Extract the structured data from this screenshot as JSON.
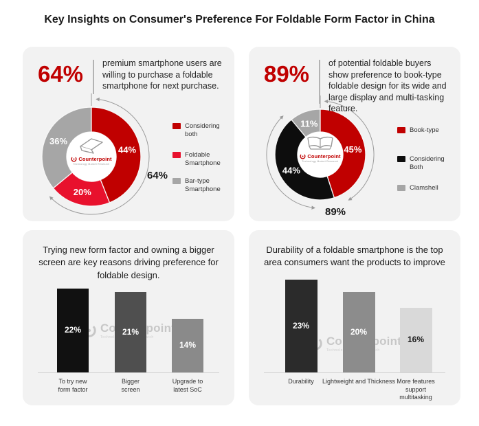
{
  "page_title": "Key Insights on Consumer's Preference For Foldable Form Factor in China",
  "brand": {
    "logo_text": "Counterpoint",
    "logo_tagline": "Technology Market Research",
    "logo_color": "#c00000"
  },
  "panels": {
    "top_left": {
      "stat": "64%",
      "description": "premium smartphone users are willing to purchase a foldable smartphone for next purchase."
    },
    "top_right": {
      "stat": "89%",
      "description": "of potential foldable buyers show preference to book-type foldable design for its wide and large display and multi-tasking feature."
    }
  },
  "chart_data": [
    {
      "id": "purchase-willingness-donut",
      "type": "pie",
      "title": "64% premium smartphone users are willing to purchase a foldable smartphone for next purchase.",
      "labels": [
        "Considering both",
        "Foldable Smartphone",
        "Bar-type Smartphone"
      ],
      "values": [
        44,
        20,
        36
      ],
      "segment_labels": [
        "44%",
        "20%",
        "36%"
      ],
      "colors": [
        "#c00000",
        "#e8112d",
        "#a6a6a6"
      ],
      "total_label": "64%",
      "arc_span_pct": 64,
      "legend_position": "right",
      "center_icon": "bar-type-foldable-phone"
    },
    {
      "id": "design-preference-donut",
      "type": "pie",
      "title": "89% of potential foldable buyers show preference to book-type foldable design for its wide and large display and multi-tasking feature.",
      "labels": [
        "Book-type",
        "Considering Both",
        "Clamshell"
      ],
      "values": [
        45,
        44,
        11
      ],
      "segment_labels": [
        "45%",
        "44%",
        "11%"
      ],
      "colors": [
        "#c00000",
        "#0d0d0d",
        "#a6a6a6"
      ],
      "total_label": "89%",
      "arc_span_pct": 89,
      "legend_position": "right",
      "center_icon": "book-type-foldable-phone"
    },
    {
      "id": "purchase-reasons-bar",
      "type": "bar",
      "title": "Trying new form factor and owning a bigger screen are key reasons driving preference for foldable design.",
      "categories": [
        "To try new form factor",
        "Bigger screen",
        "Upgrade to latest SoC"
      ],
      "category_lines": [
        [
          "To try new",
          "form factor"
        ],
        [
          "Bigger",
          "screen"
        ],
        [
          "Upgrade to",
          "latest SoC"
        ]
      ],
      "values": [
        22,
        21,
        14
      ],
      "value_labels": [
        "22%",
        "21%",
        "14%"
      ],
      "colors": [
        "#111111",
        "#4f4f4f",
        "#8a8a8a"
      ],
      "value_label_colors": [
        "#ffffff",
        "#ffffff",
        "#ffffff"
      ],
      "ylabel": "",
      "xlabel": "",
      "grid": false,
      "legend": false
    },
    {
      "id": "improvement-areas-bar",
      "type": "bar",
      "title": "Durability of a foldable smartphone is the top area consumers want the products to improve",
      "categories": [
        "Durability",
        "Lightweight and Thickness",
        "More features support multitasking"
      ],
      "category_lines": [
        [
          "Durability"
        ],
        [
          "Lightweight and Thickness"
        ],
        [
          "More features",
          "support",
          "multitasking"
        ]
      ],
      "values": [
        23,
        20,
        16
      ],
      "value_labels": [
        "23%",
        "20%",
        "16%"
      ],
      "colors": [
        "#2b2b2b",
        "#8c8c8c",
        "#d9d9d9"
      ],
      "value_label_colors": [
        "#ffffff",
        "#ffffff",
        "#1a1a1a"
      ],
      "ylabel": "",
      "xlabel": "",
      "grid": false,
      "legend": false
    }
  ]
}
